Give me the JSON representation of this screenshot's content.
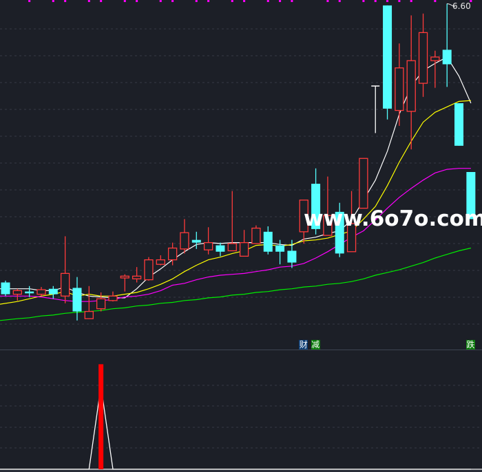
{
  "chart_data": [
    {
      "type": "candlestick",
      "title": "",
      "ylim": [
        2.84,
        6.64
      ],
      "grid": true,
      "colors": {
        "up": "#ff3b3b",
        "down": "#54ffff",
        "flat": "#ffffff",
        "background": "#1c1f27",
        "grid": "#363a45"
      },
      "candles": [
        {
          "o": 3.52,
          "c": 3.39,
          "h": 3.54,
          "l": 3.37
        },
        {
          "o": 3.39,
          "c": 3.43,
          "h": 3.45,
          "l": 3.32
        },
        {
          "o": 3.42,
          "c": 3.4,
          "h": 3.48,
          "l": 3.36
        },
        {
          "o": 3.39,
          "c": 3.44,
          "h": 3.47,
          "l": 3.37
        },
        {
          "o": 3.45,
          "c": 3.39,
          "h": 3.48,
          "l": 3.34
        },
        {
          "o": 3.37,
          "c": 3.62,
          "h": 4.03,
          "l": 3.29
        },
        {
          "o": 3.46,
          "c": 3.2,
          "h": 3.58,
          "l": 3.1
        },
        {
          "o": 3.12,
          "c": 3.2,
          "h": 3.48,
          "l": 3.12
        },
        {
          "o": 3.23,
          "c": 3.34,
          "h": 3.41,
          "l": 3.2
        },
        {
          "o": 3.32,
          "c": 3.37,
          "h": 3.42,
          "l": 3.31
        },
        {
          "o": 3.57,
          "c": 3.59,
          "h": 3.61,
          "l": 3.42
        },
        {
          "o": 3.56,
          "c": 3.59,
          "h": 3.69,
          "l": 3.52
        },
        {
          "o": 3.55,
          "c": 3.77,
          "h": 3.8,
          "l": 3.54
        },
        {
          "o": 3.72,
          "c": 3.77,
          "h": 3.82,
          "l": 3.71
        },
        {
          "o": 3.77,
          "c": 3.9,
          "h": 3.96,
          "l": 3.71
        },
        {
          "o": 3.89,
          "c": 4.07,
          "h": 4.22,
          "l": 3.84
        },
        {
          "o": 3.99,
          "c": 3.96,
          "h": 4.08,
          "l": 3.89
        },
        {
          "o": 3.88,
          "c": 3.96,
          "h": 4.13,
          "l": 3.83
        },
        {
          "o": 3.93,
          "c": 3.86,
          "h": 3.96,
          "l": 3.81
        },
        {
          "o": 3.87,
          "c": 3.95,
          "h": 4.53,
          "l": 3.87
        },
        {
          "o": 3.81,
          "c": 3.96,
          "h": 4.1,
          "l": 3.81
        },
        {
          "o": 3.95,
          "c": 4.12,
          "h": 4.15,
          "l": 3.95
        },
        {
          "o": 4.08,
          "c": 3.86,
          "h": 4.14,
          "l": 3.83
        },
        {
          "o": 3.93,
          "c": 3.86,
          "h": 3.99,
          "l": 3.72
        },
        {
          "o": 3.87,
          "c": 3.74,
          "h": 3.99,
          "l": 3.68
        },
        {
          "o": 4.08,
          "c": 4.43,
          "h": 4.43,
          "l": 3.95
        },
        {
          "o": 4.61,
          "c": 4.11,
          "h": 4.78,
          "l": 4.05
        },
        {
          "o": 4.04,
          "c": 4.26,
          "h": 4.69,
          "l": 4.04
        },
        {
          "o": 4.3,
          "c": 3.84,
          "h": 4.4,
          "l": 3.8
        },
        {
          "o": 3.86,
          "c": 4.17,
          "h": 4.53,
          "l": 3.86
        },
        {
          "o": 4.34,
          "c": 4.89,
          "h": 4.89,
          "l": 4.34
        },
        {
          "o": 5.69,
          "c": 5.69,
          "h": 5.69,
          "l": 5.17
        },
        {
          "o": 6.58,
          "c": 5.44,
          "h": 6.58,
          "l": 5.32
        },
        {
          "o": 5.42,
          "c": 5.89,
          "h": 6.16,
          "l": 5.25
        },
        {
          "o": 5.41,
          "c": 5.97,
          "h": 6.47,
          "l": 4.99
        },
        {
          "o": 5.72,
          "c": 6.28,
          "h": 6.49,
          "l": 5.57
        },
        {
          "o": 5.97,
          "c": 6.01,
          "h": 6.08,
          "l": 5.67
        },
        {
          "o": 6.09,
          "c": 5.93,
          "h": 6.6,
          "l": 5.68
        },
        {
          "o": 5.5,
          "c": 5.03,
          "h": 5.5,
          "l": 5.03
        },
        {
          "o": 4.74,
          "c": 4.22,
          "h": 4.74,
          "l": 4.22
        }
      ],
      "series": [
        {
          "color": "#ffffff",
          "values": [
            3.45,
            3.45,
            3.45,
            3.43,
            3.43,
            3.47,
            3.41,
            3.37,
            3.36,
            3.35,
            3.35,
            3.45,
            3.58,
            3.67,
            3.77,
            3.86,
            3.94,
            3.96,
            3.95,
            3.96,
            3.96,
            3.96,
            3.96,
            3.94,
            3.93,
            4.0,
            4.02,
            4.06,
            4.09,
            4.21,
            4.43,
            4.65,
            4.97,
            5.38,
            5.69,
            5.86,
            5.94,
            6.01,
            5.8,
            5.5
          ]
        },
        {
          "color": "#ffff00",
          "values": [
            3.28,
            3.31,
            3.34,
            3.37,
            3.39,
            3.42,
            3.37,
            3.39,
            3.37,
            3.37,
            3.39,
            3.41,
            3.45,
            3.5,
            3.56,
            3.64,
            3.71,
            3.77,
            3.8,
            3.84,
            3.87,
            3.93,
            3.94,
            3.92,
            3.94,
            3.98,
            3.99,
            4.01,
            4.05,
            4.09,
            4.22,
            4.36,
            4.59,
            4.85,
            5.08,
            5.29,
            5.4,
            5.46,
            5.52,
            5.53
          ]
        },
        {
          "color": "#ff00ff",
          "values": [
            3.37,
            3.37,
            3.37,
            3.36,
            3.34,
            3.32,
            3.31,
            3.31,
            3.32,
            3.33,
            3.36,
            3.37,
            3.39,
            3.43,
            3.49,
            3.51,
            3.55,
            3.58,
            3.6,
            3.61,
            3.62,
            3.64,
            3.66,
            3.69,
            3.7,
            3.73,
            3.79,
            3.86,
            3.94,
            4.02,
            4.09,
            4.21,
            4.34,
            4.46,
            4.56,
            4.65,
            4.73,
            4.77,
            4.78,
            4.78
          ]
        },
        {
          "color": "#00ee00",
          "values": [
            3.1,
            3.12,
            3.13,
            3.15,
            3.16,
            3.18,
            3.19,
            3.2,
            3.21,
            3.23,
            3.24,
            3.26,
            3.27,
            3.29,
            3.3,
            3.32,
            3.33,
            3.35,
            3.36,
            3.38,
            3.39,
            3.41,
            3.42,
            3.44,
            3.45,
            3.47,
            3.48,
            3.5,
            3.51,
            3.53,
            3.56,
            3.6,
            3.63,
            3.66,
            3.7,
            3.74,
            3.79,
            3.83,
            3.87,
            3.9
          ]
        }
      ],
      "annotations": [
        {
          "text": "6.60",
          "candle": 37
        }
      ],
      "top_markers": [
        2,
        4,
        5,
        7,
        8,
        10,
        11,
        13,
        14,
        16,
        17,
        19,
        20,
        22,
        23,
        24,
        27,
        28,
        30,
        31,
        32,
        33,
        34,
        36,
        39
      ],
      "top_marker_color": "#ff00ff",
      "signals": [
        {
          "text": "财",
          "candle": 25,
          "color": "#0d3d73"
        },
        {
          "text": "减",
          "candle": 26,
          "color": "#0b7a0b"
        },
        {
          "text": "跌",
          "candle": 39,
          "color": "#0b7a0b"
        }
      ]
    },
    {
      "type": "bar",
      "title": "",
      "ylim": [
        0,
        1.14
      ],
      "grid": true,
      "bar_color": "#ff0000",
      "line_color": "#ffffff",
      "bars": [
        0,
        0,
        0,
        0,
        0,
        0,
        0,
        0,
        1,
        0,
        0,
        0,
        0,
        0,
        0,
        0,
        0,
        0,
        0,
        0,
        0,
        0,
        0,
        0,
        0,
        0,
        0,
        0,
        0,
        0,
        0,
        0,
        0,
        0,
        0,
        0,
        0,
        0,
        0,
        0
      ],
      "line": [
        0,
        0,
        0,
        0,
        0,
        0,
        0,
        0,
        0.79,
        0,
        0,
        0,
        0,
        0,
        0,
        0,
        0,
        0,
        0,
        0,
        0,
        0,
        0,
        0,
        0,
        0,
        0,
        0,
        0,
        0,
        0,
        0,
        0,
        0,
        0,
        0,
        0,
        0,
        0,
        0
      ]
    }
  ],
  "watermark": "www.6o7o.com"
}
